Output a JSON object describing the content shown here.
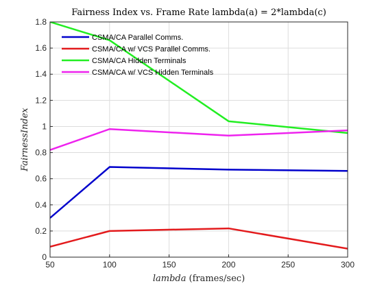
{
  "chart_data": {
    "type": "line",
    "title": "Fairness Index vs. Frame Rate lambda(a) = 2*lambda(c)",
    "xlabel_var": "lambda",
    "xlabel_unit": "(frames/sec)",
    "ylabel": "FairnessIndex",
    "xlim": [
      50,
      300
    ],
    "ylim": [
      0,
      1.8
    ],
    "xticks": [
      50,
      100,
      150,
      200,
      250,
      300
    ],
    "yticks": [
      0,
      0.2,
      0.4,
      0.6,
      0.8,
      1,
      1.2,
      1.4,
      1.6,
      1.8
    ],
    "x": [
      50,
      100,
      200,
      300
    ],
    "grid": true,
    "legend_position": "top-left",
    "series": [
      {
        "name": "CSMA/CA Parallel Comms.",
        "color": "#0000cc",
        "values": [
          0.3,
          0.69,
          0.67,
          0.66
        ]
      },
      {
        "name": "CSMA/CA w/ VCS Parallel Comms.",
        "color": "#e31a1c",
        "values": [
          0.08,
          0.2,
          0.22,
          0.065
        ]
      },
      {
        "name": "CSMA/CA Hidden Terminals",
        "color": "#22ee22",
        "values": [
          1.8,
          1.66,
          1.04,
          0.95
        ]
      },
      {
        "name": "CSMA/CA w/ VCS Hidden Terminals",
        "color": "#ee22ee",
        "values": [
          0.82,
          0.98,
          0.93,
          0.97
        ]
      }
    ]
  }
}
